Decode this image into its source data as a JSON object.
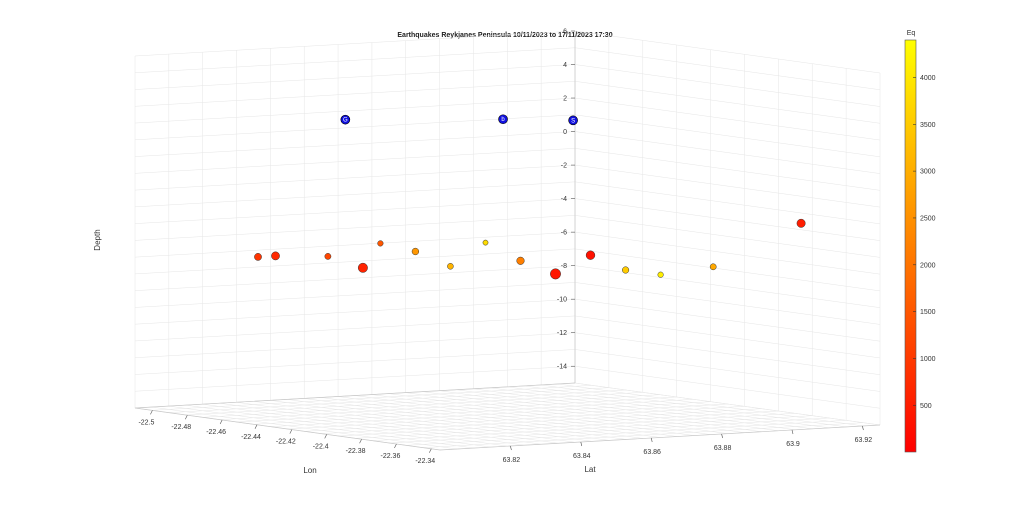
{
  "chart_data": {
    "type": "scatter",
    "title": "Earthquakes Reykjanes Peninsula 10/11/2023 to 17/11/2023 17:30",
    "xlabel": "Lon",
    "ylabel": "Lat",
    "zlabel": "Depth",
    "xlim": [
      -22.51,
      -22.335
    ],
    "ylim": [
      63.8,
      63.925
    ],
    "zlim": [
      -15,
      6
    ],
    "x_ticks": [
      "-22.5",
      "-22.48",
      "-22.46",
      "-22.44",
      "-22.42",
      "-22.4",
      "-22.38",
      "-22.36",
      "-22.34"
    ],
    "y_ticks": [
      "63.82",
      "63.84",
      "63.86",
      "63.88",
      "63.9",
      "63.92"
    ],
    "z_ticks": [
      "6",
      "4",
      "2",
      "0",
      "-2",
      "-4",
      "-6",
      "-8",
      "-10",
      "-12",
      "-14"
    ],
    "grid": true,
    "colorbar": {
      "label": "Eq",
      "range": [
        1,
        4400
      ],
      "ticks": [
        "4000",
        "3500",
        "3000",
        "2500",
        "2000",
        "1500",
        "1000",
        "500"
      ],
      "colormap": "autumn",
      "color_low": "#ff0000",
      "color_high": "#ffff00"
    },
    "series": [
      {
        "marker": "circle",
        "color_by": "Eq",
        "size_by": "magnitude",
        "points": [
          {
            "lon": -22.5,
            "lat": 63.83,
            "depth": -6.2,
            "eq": 900,
            "mag": 1.5
          },
          {
            "lon": -22.49,
            "lat": 63.83,
            "depth": -6.0,
            "eq": 700,
            "mag": 1.8
          },
          {
            "lon": -22.47,
            "lat": 63.835,
            "depth": -5.8,
            "eq": 1200,
            "mag": 1.2
          },
          {
            "lon": -22.46,
            "lat": 63.84,
            "depth": -6.4,
            "eq": 600,
            "mag": 2.2
          },
          {
            "lon": -22.45,
            "lat": 63.84,
            "depth": -4.8,
            "eq": 1500,
            "mag": 1.0
          },
          {
            "lon": -22.44,
            "lat": 63.845,
            "depth": -5.2,
            "eq": 2600,
            "mag": 1.4
          },
          {
            "lon": -22.43,
            "lat": 63.85,
            "depth": -6.0,
            "eq": 3100,
            "mag": 1.1
          },
          {
            "lon": -22.42,
            "lat": 63.855,
            "depth": -4.5,
            "eq": 3800,
            "mag": 0.9
          },
          {
            "lon": -22.41,
            "lat": 63.86,
            "depth": -5.5,
            "eq": 2200,
            "mag": 1.6
          },
          {
            "lon": -22.4,
            "lat": 63.865,
            "depth": -6.2,
            "eq": 400,
            "mag": 2.5
          },
          {
            "lon": -22.39,
            "lat": 63.87,
            "depth": -5.0,
            "eq": 300,
            "mag": 2.0
          },
          {
            "lon": -22.38,
            "lat": 63.875,
            "depth": -5.8,
            "eq": 3500,
            "mag": 1.3
          },
          {
            "lon": -22.37,
            "lat": 63.88,
            "depth": -6.0,
            "eq": 4100,
            "mag": 1.0
          },
          {
            "lon": -22.36,
            "lat": 63.89,
            "depth": -5.5,
            "eq": 2900,
            "mag": 1.2
          },
          {
            "lon": -22.35,
            "lat": 63.91,
            "depth": -3.0,
            "eq": 500,
            "mag": 1.9
          }
        ]
      }
    ],
    "text_markers": [
      {
        "label": "G",
        "lon": -22.46,
        "lat": 63.835,
        "depth": 2.5
      },
      {
        "label": "b",
        "lon": -22.42,
        "lat": 63.86,
        "depth": 2.8
      },
      {
        "label": "S",
        "lon": -22.4,
        "lat": 63.87,
        "depth": 2.9
      }
    ]
  }
}
